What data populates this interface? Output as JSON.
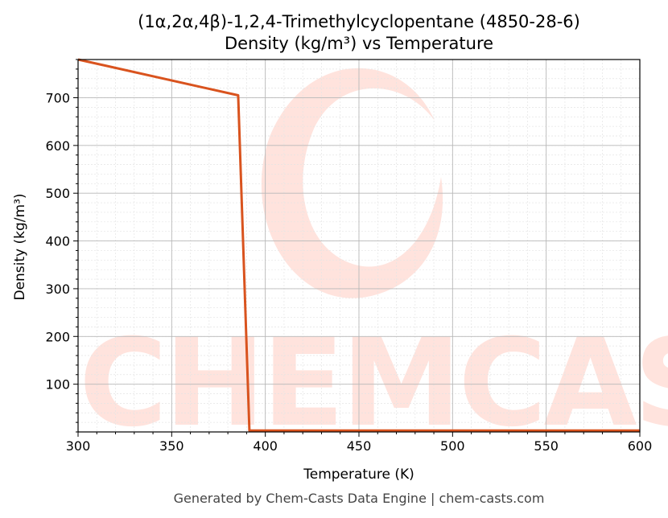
{
  "chart_data": {
    "type": "line",
    "title": "(1α,2α,4β)-1,2,4-Trimethylcyclopentane (4850-28-6)",
    "subtitle": "Density (kg/m³) vs Temperature",
    "xlabel": "Temperature (K)",
    "ylabel": "Density (kg/m³)",
    "xlim": [
      300,
      600
    ],
    "ylim": [
      0,
      780
    ],
    "xticks": [
      300,
      350,
      400,
      450,
      500,
      550,
      600
    ],
    "yticks": [
      100,
      200,
      300,
      400,
      500,
      600,
      700
    ],
    "grid": true,
    "series": [
      {
        "color": "#d9531e",
        "x": [
          300,
          385.5,
          391.5,
          600
        ],
        "y": [
          780,
          705,
          3,
          3
        ]
      }
    ],
    "watermark": "CHEMCASTS",
    "footer": "Generated by Chem-Casts Data Engine | chem-casts.com"
  }
}
